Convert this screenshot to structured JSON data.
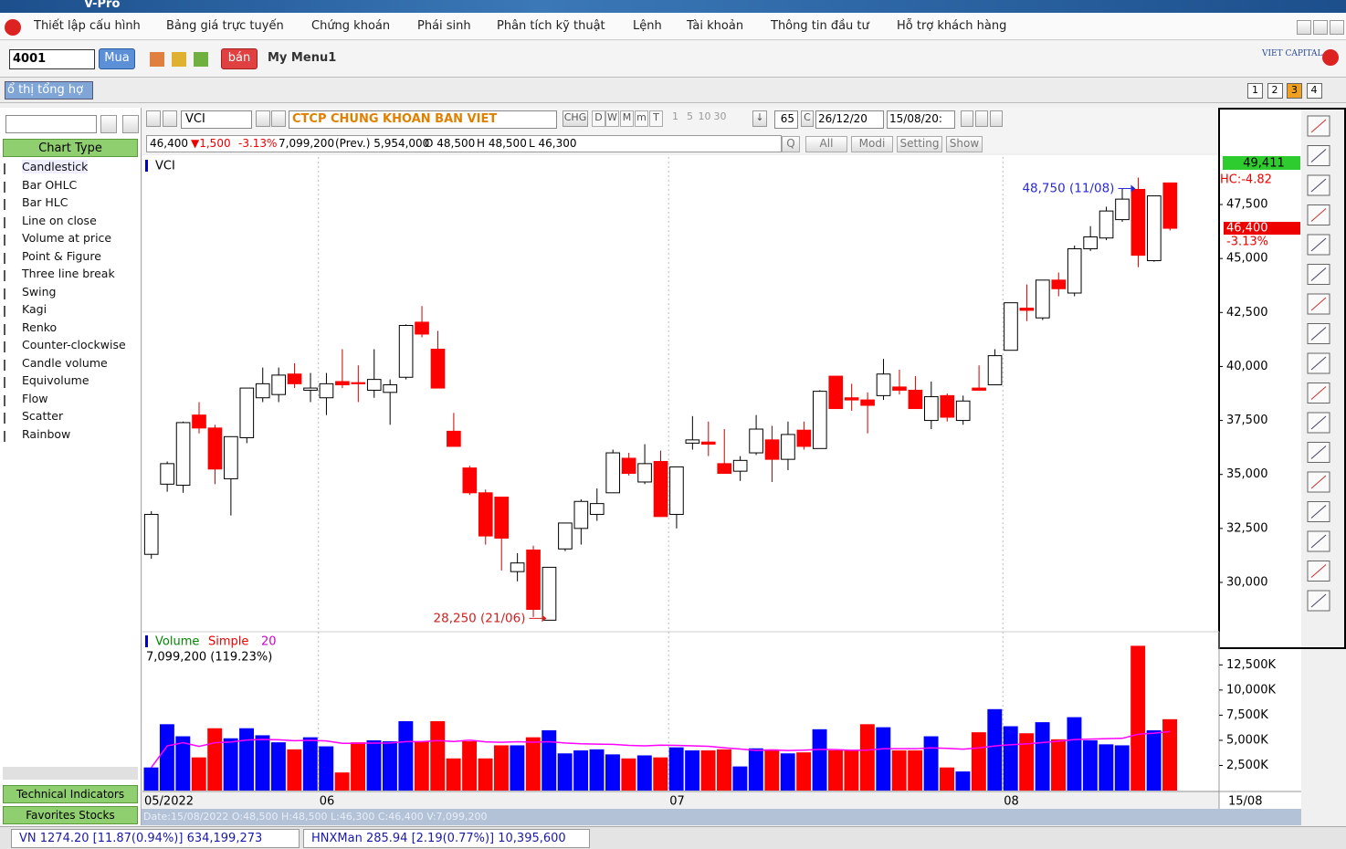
{
  "window": {
    "title": "V-Pro"
  },
  "menu": [
    "Thiết lập cấu hình",
    "Bảng giá trực tuyến",
    "Chứng khoán",
    "Phái sinh",
    "Phân tích kỹ thuật",
    "Lệnh",
    "Tài khoản",
    "Thông tin đầu tư",
    "Hỗ trợ khách hàng"
  ],
  "toolbar": {
    "code": "4001",
    "buy": "Mua",
    "sell": "bán",
    "menu": "My Menu1",
    "brand": "VIET CAPITAL"
  },
  "tab": "ổ thị tổng hợ",
  "page_tabs": [
    "1",
    "2",
    "3",
    "4"
  ],
  "chart_toolbar": {
    "symbol": "VCI",
    "company": "CTCP CHUNG KHOAN BAN VIET",
    "chg": "CHG",
    "periods": [
      "D",
      "W",
      "M",
      "m",
      "T"
    ],
    "minutes": [
      "1",
      "5",
      "10",
      "30"
    ],
    "count": "65",
    "c": "C",
    "from": "26/12/20",
    "to": "15/08/20:"
  },
  "quote": {
    "price": "46,400",
    "change": "▼1,500",
    "pct": "-3.13%",
    "volume": "7,099,200",
    "prev": "(Prev.) 5,954,000",
    "open": "O 48,500",
    "high": "H 48,500",
    "low": "L 46,300"
  },
  "filter_buttons": [
    "Q",
    "All",
    "Modi",
    "Setting",
    "Show"
  ],
  "left_panel": {
    "header": "Chart Type",
    "items": [
      "Candlestick",
      "Bar OHLC",
      "Bar HLC",
      "Line on close",
      "Volume at price",
      "Point & Figure",
      "Three line break",
      "Swing",
      "Kagi",
      "Renko",
      "Counter-clockwise",
      "Candle volume",
      "Equivolume",
      "Flow",
      "Scatter",
      "Rainbow"
    ],
    "footer": [
      "Technical Indicators",
      "Favorites Stocks"
    ]
  },
  "chart_data": [
    {
      "type": "candlestick",
      "title": "VCI",
      "categories": [
        "05/2022",
        null,
        null,
        null,
        null,
        null,
        null,
        null,
        null,
        null,
        null,
        "06",
        null,
        null,
        null,
        null,
        null,
        null,
        null,
        null,
        null,
        null,
        null,
        null,
        null,
        null,
        null,
        null,
        null,
        null,
        null,
        null,
        null,
        "07",
        null,
        null,
        null,
        null,
        null,
        null,
        null,
        null,
        null,
        null,
        null,
        null,
        null,
        null,
        null,
        null,
        null,
        null,
        null,
        null,
        "08",
        null,
        null,
        null,
        null,
        null,
        null,
        null,
        null,
        null,
        null
      ],
      "open": [
        31300,
        34550,
        34500,
        37750,
        37150,
        34800,
        36700,
        38550,
        38700,
        39650,
        38900,
        38550,
        39300,
        39250,
        38900,
        38800,
        39500,
        42050,
        40800,
        37000,
        35300,
        34150,
        33950,
        30500,
        31500,
        28250,
        31550,
        32500,
        33150,
        34150,
        35750,
        34650,
        35600,
        33150,
        36450,
        36500,
        35500,
        35150,
        36000,
        36600,
        35700,
        37050,
        36200,
        39550,
        38550,
        38450,
        38650,
        39050,
        38900,
        37500,
        38650,
        37500,
        39000,
        39150,
        40750,
        42700,
        42250,
        44000,
        43400,
        45450,
        45950,
        46800,
        48200,
        44900,
        48500
      ],
      "high": [
        33300,
        35600,
        37450,
        38350,
        37300,
        36750,
        39000,
        39950,
        39950,
        40150,
        39700,
        39700,
        40800,
        40050,
        40800,
        39400,
        41950,
        42800,
        41650,
        37850,
        35400,
        34300,
        33950,
        31350,
        31700,
        30700,
        32750,
        33850,
        34350,
        36150,
        36000,
        36400,
        36100,
        35350,
        37700,
        37450,
        37100,
        35850,
        37750,
        37250,
        37450,
        37450,
        38900,
        39550,
        39200,
        38800,
        40350,
        39850,
        39550,
        39300,
        38750,
        38650,
        40050,
        40800,
        42950,
        43800,
        44000,
        44350,
        45600,
        46500,
        47400,
        48250,
        48750,
        47900,
        48500
      ],
      "low": [
        31100,
        34200,
        34150,
        36900,
        34550,
        33100,
        36450,
        38350,
        38350,
        39000,
        38350,
        37750,
        39000,
        38350,
        38550,
        37300,
        39400,
        41350,
        39000,
        36300,
        34050,
        31750,
        30550,
        30050,
        28400,
        28250,
        31450,
        31750,
        32850,
        34150,
        34950,
        34550,
        33050,
        32500,
        36150,
        35850,
        35050,
        34700,
        35900,
        34650,
        35200,
        36150,
        36200,
        38050,
        37950,
        36900,
        38450,
        38700,
        38050,
        37100,
        37450,
        37300,
        38900,
        39150,
        40750,
        42100,
        42150,
        43250,
        43250,
        45350,
        45850,
        46700,
        44600,
        44850,
        46300
      ],
      "close": [
        33150,
        35500,
        37400,
        37150,
        35250,
        36750,
        39000,
        39200,
        39600,
        39200,
        39000,
        39200,
        39150,
        39200,
        39400,
        39150,
        41900,
        41500,
        39000,
        36300,
        34150,
        32150,
        32050,
        30900,
        28750,
        30700,
        32750,
        33750,
        33650,
        36000,
        35050,
        35500,
        33050,
        35350,
        36600,
        36400,
        35050,
        35650,
        37100,
        35700,
        36850,
        36300,
        38850,
        38050,
        38450,
        38200,
        39650,
        38900,
        38050,
        38600,
        37650,
        38400,
        38900,
        40500,
        42950,
        42600,
        44000,
        43600,
        45450,
        46000,
        47200,
        47750,
        45150,
        47900,
        46400
      ],
      "ylim": [
        27800,
        49700
      ],
      "yticks": [
        {
          "value": 30000,
          "label": "30,000"
        },
        {
          "value": 32500,
          "label": "32,500"
        },
        {
          "value": 35000,
          "label": "35,000"
        },
        {
          "value": 37500,
          "label": "37,500"
        },
        {
          "value": 40000,
          "label": "40,000"
        },
        {
          "value": 42500,
          "label": "42,500"
        },
        {
          "value": 45000,
          "label": "45,000"
        },
        {
          "value": 47500,
          "label": "47,500"
        }
      ],
      "colors": {
        "up": "#ffffff",
        "down": "#ff0000"
      },
      "annotations": [
        {
          "text": "48,750 (11/08)",
          "value": 48750,
          "anchor": "high",
          "color": "#2a2ad0"
        },
        {
          "text": "28,250 (21/06)",
          "value": 28250,
          "anchor": "low",
          "color": "#d02020"
        }
      ],
      "cursor_label": "49,411",
      "hc_label": "HC:-4.82",
      "last_price_label": "46,400",
      "change_label": "-3.13%",
      "last_date": "15/08"
    },
    {
      "type": "volume",
      "title": "Volume",
      "ma_label": "Simple",
      "ma_period": 20,
      "value_label": "7,099,200 (119.23%)",
      "values": [
        2300000,
        6600000,
        5400000,
        3300000,
        6200000,
        5200000,
        6200000,
        5500000,
        4800000,
        4100000,
        5300000,
        4400000,
        1800000,
        4800000,
        5000000,
        4900000,
        6900000,
        4900000,
        6900000,
        3200000,
        4900000,
        3200000,
        4500000,
        4500000,
        5300000,
        6000000,
        3700000,
        4000000,
        4100000,
        3600000,
        3200000,
        3500000,
        3300000,
        4300000,
        4000000,
        4000000,
        4100000,
        2400000,
        4200000,
        4100000,
        3700000,
        3800000,
        6100000,
        4000000,
        4000000,
        6600000,
        6300000,
        4000000,
        4000000,
        5400000,
        2300000,
        1900000,
        5800000,
        8100000,
        6400000,
        5700000,
        6800000,
        5100000,
        7300000,
        5000000,
        4600000,
        4500000,
        14400000,
        6000000,
        7099200
      ],
      "ylim": [
        0,
        15800000
      ],
      "yticks": [
        {
          "value": 2500000,
          "label": "2,500K"
        },
        {
          "value": 5000000,
          "label": "5,000K"
        },
        {
          "value": 7500000,
          "label": "7,500K"
        },
        {
          "value": 10000000,
          "label": "10,000K"
        },
        {
          "value": 12500000,
          "label": "12,500K"
        }
      ],
      "colors": {
        "up": "#0000ff",
        "down": "#ff0000"
      },
      "ma_color": "#ff00ff"
    }
  ],
  "info_line": "Date:15/08/2022  O:48,500  H:48,500  L:46,300  C:46,400  V:7,099,200",
  "status": [
    "VN 1274.20 [11.87(0.94%)] 634,199,273",
    "HNXMan 285.94 [2.19(0.77%)] 10,395,600"
  ]
}
